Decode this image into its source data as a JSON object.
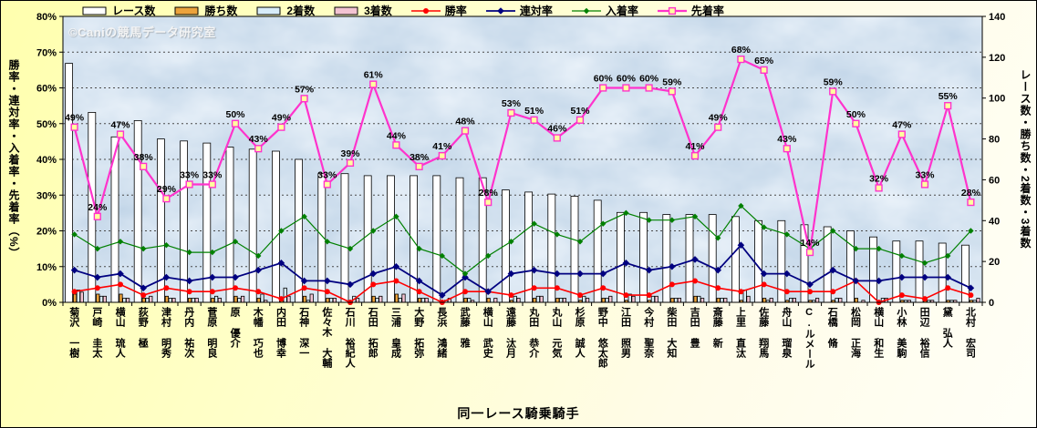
{
  "watermark": "©Caniの競馬データ研究室",
  "title": "同一レース騎乗騎手",
  "chart_data": {
    "type": "combo_bar_line",
    "grid": true,
    "legend_position": "top",
    "categories": [
      "菊沢 一樹",
      "戸崎 圭太",
      "横山 琉人",
      "荻野 極",
      "津村 明秀",
      "丹内 祐次",
      "菅原 明良",
      "原 優介",
      "木幡 巧也",
      "内田 博幸",
      "石神 深一",
      "佐々木 大輔",
      "石川 裕紀人",
      "石田 拓郎",
      "三浦 皇成",
      "大野 拓弥",
      "長浜 鴻緒",
      "武藤 雅",
      "横山 武史",
      "遠藤 汰月",
      "丸田 恭介",
      "丸山 元気",
      "杉原 誠人",
      "野中 悠太郎",
      "江田 照男",
      "今村 聖奈",
      "柴田 大知",
      "吉田 豊",
      "斎藤 新",
      "上里 直汰",
      "佐藤 翔馬",
      "舟山 瑠泉",
      "C.ルメール",
      "石橋 脩",
      "松岡 正海",
      "横山 和生",
      "小林 美駒",
      "田辺 裕信",
      "黛 弘人",
      "北村 宏司"
    ],
    "left_axis": {
      "title": "勝率・連対率・入着率・先着率（%）",
      "min": 0,
      "max": 80,
      "tick_step": 10,
      "tick_suffix": "%"
    },
    "right_axis": {
      "title": "レース数・勝ち数・2着数・3着数",
      "min": 0,
      "max": 140,
      "tick_step": 20,
      "tick_suffix": ""
    },
    "series": [
      {
        "name": "レース数",
        "kind": "bar",
        "axis": "right",
        "fill": "#FFFFFF",
        "values": [
          117,
          93,
          81,
          89,
          80,
          79,
          78,
          76,
          75,
          74,
          70,
          63,
          63,
          62,
          62,
          62,
          62,
          61,
          61,
          55,
          54,
          53,
          52,
          50,
          44,
          44,
          43,
          43,
          43,
          42,
          40,
          40,
          38,
          37,
          35,
          32,
          30,
          30,
          29,
          28
        ]
      },
      {
        "name": "勝ち数",
        "kind": "bar",
        "axis": "right",
        "fill": "#ECA33C",
        "values": [
          4,
          4,
          4,
          2,
          3,
          2,
          2,
          3,
          2,
          1,
          3,
          2,
          0,
          3,
          4,
          2,
          0,
          2,
          2,
          1,
          2,
          2,
          1,
          2,
          1,
          1,
          2,
          3,
          2,
          1,
          2,
          1,
          1,
          1,
          2,
          0,
          1,
          1,
          1,
          1
        ]
      },
      {
        "name": "2着数",
        "kind": "bar",
        "axis": "right",
        "fill": "#D8ECF8",
        "values": [
          6,
          3,
          2,
          2,
          2,
          2,
          3,
          2,
          4,
          7,
          1,
          2,
          3,
          2,
          2,
          2,
          1,
          2,
          0,
          3,
          3,
          2,
          3,
          2,
          4,
          3,
          2,
          3,
          2,
          6,
          1,
          2,
          1,
          2,
          0,
          2,
          1,
          1,
          1,
          1
        ]
      },
      {
        "name": "3着数",
        "kind": "bar",
        "axis": "right",
        "fill": "#F3C3D2",
        "values": [
          5,
          3,
          2,
          3,
          2,
          2,
          2,
          3,
          1,
          3,
          4,
          2,
          2,
          3,
          4,
          2,
          2,
          1,
          2,
          2,
          3,
          2,
          2,
          3,
          3,
          3,
          2,
          2,
          2,
          3,
          2,
          2,
          2,
          2,
          1,
          2,
          1,
          1,
          1,
          2
        ]
      },
      {
        "name": "勝率",
        "kind": "line",
        "axis": "left",
        "color": "#FF0000",
        "marker": "circle",
        "values": [
          3,
          4,
          5,
          2,
          4,
          3,
          3,
          4,
          3,
          1,
          4,
          3,
          0,
          5,
          6,
          3,
          0,
          3,
          3,
          2,
          4,
          4,
          2,
          4,
          2,
          2,
          5,
          6,
          4,
          3,
          5,
          3,
          3,
          3,
          6,
          0,
          2,
          1,
          4,
          2
        ]
      },
      {
        "name": "連対率",
        "kind": "line",
        "axis": "left",
        "color": "#000080",
        "marker": "diamond",
        "values": [
          9,
          7,
          8,
          4,
          7,
          6,
          7,
          7,
          9,
          11,
          6,
          6,
          5,
          8,
          10,
          6,
          2,
          7,
          3,
          8,
          9,
          8,
          8,
          8,
          11,
          9,
          10,
          12,
          9,
          16,
          8,
          8,
          5,
          9,
          6,
          6,
          7,
          7,
          7,
          4
        ]
      },
      {
        "name": "入着率",
        "kind": "line",
        "axis": "left",
        "color": "#008000",
        "marker": "diamond-small",
        "values": [
          19,
          15,
          17,
          15,
          16,
          14,
          14,
          17,
          13,
          20,
          24,
          17,
          15,
          20,
          24,
          15,
          13,
          8,
          13,
          17,
          22,
          19,
          17,
          22,
          25,
          23,
          23,
          24,
          18,
          27,
          21,
          19,
          15,
          20,
          15,
          15,
          13,
          11,
          13,
          20
        ]
      },
      {
        "name": "先着率",
        "kind": "line",
        "axis": "left",
        "color": "#FF33CC",
        "marker": "square",
        "marker_fill": "#FFFF9E",
        "data_labels": "percent",
        "values": [
          49,
          24,
          47,
          38,
          29,
          33,
          33,
          50,
          43,
          49,
          57,
          33,
          39,
          61,
          44,
          38,
          41,
          48,
          28,
          53,
          51,
          46,
          51,
          60,
          60,
          60,
          59,
          41,
          49,
          68,
          65,
          43,
          14,
          59,
          50,
          32,
          47,
          33,
          55,
          28
        ]
      }
    ]
  }
}
